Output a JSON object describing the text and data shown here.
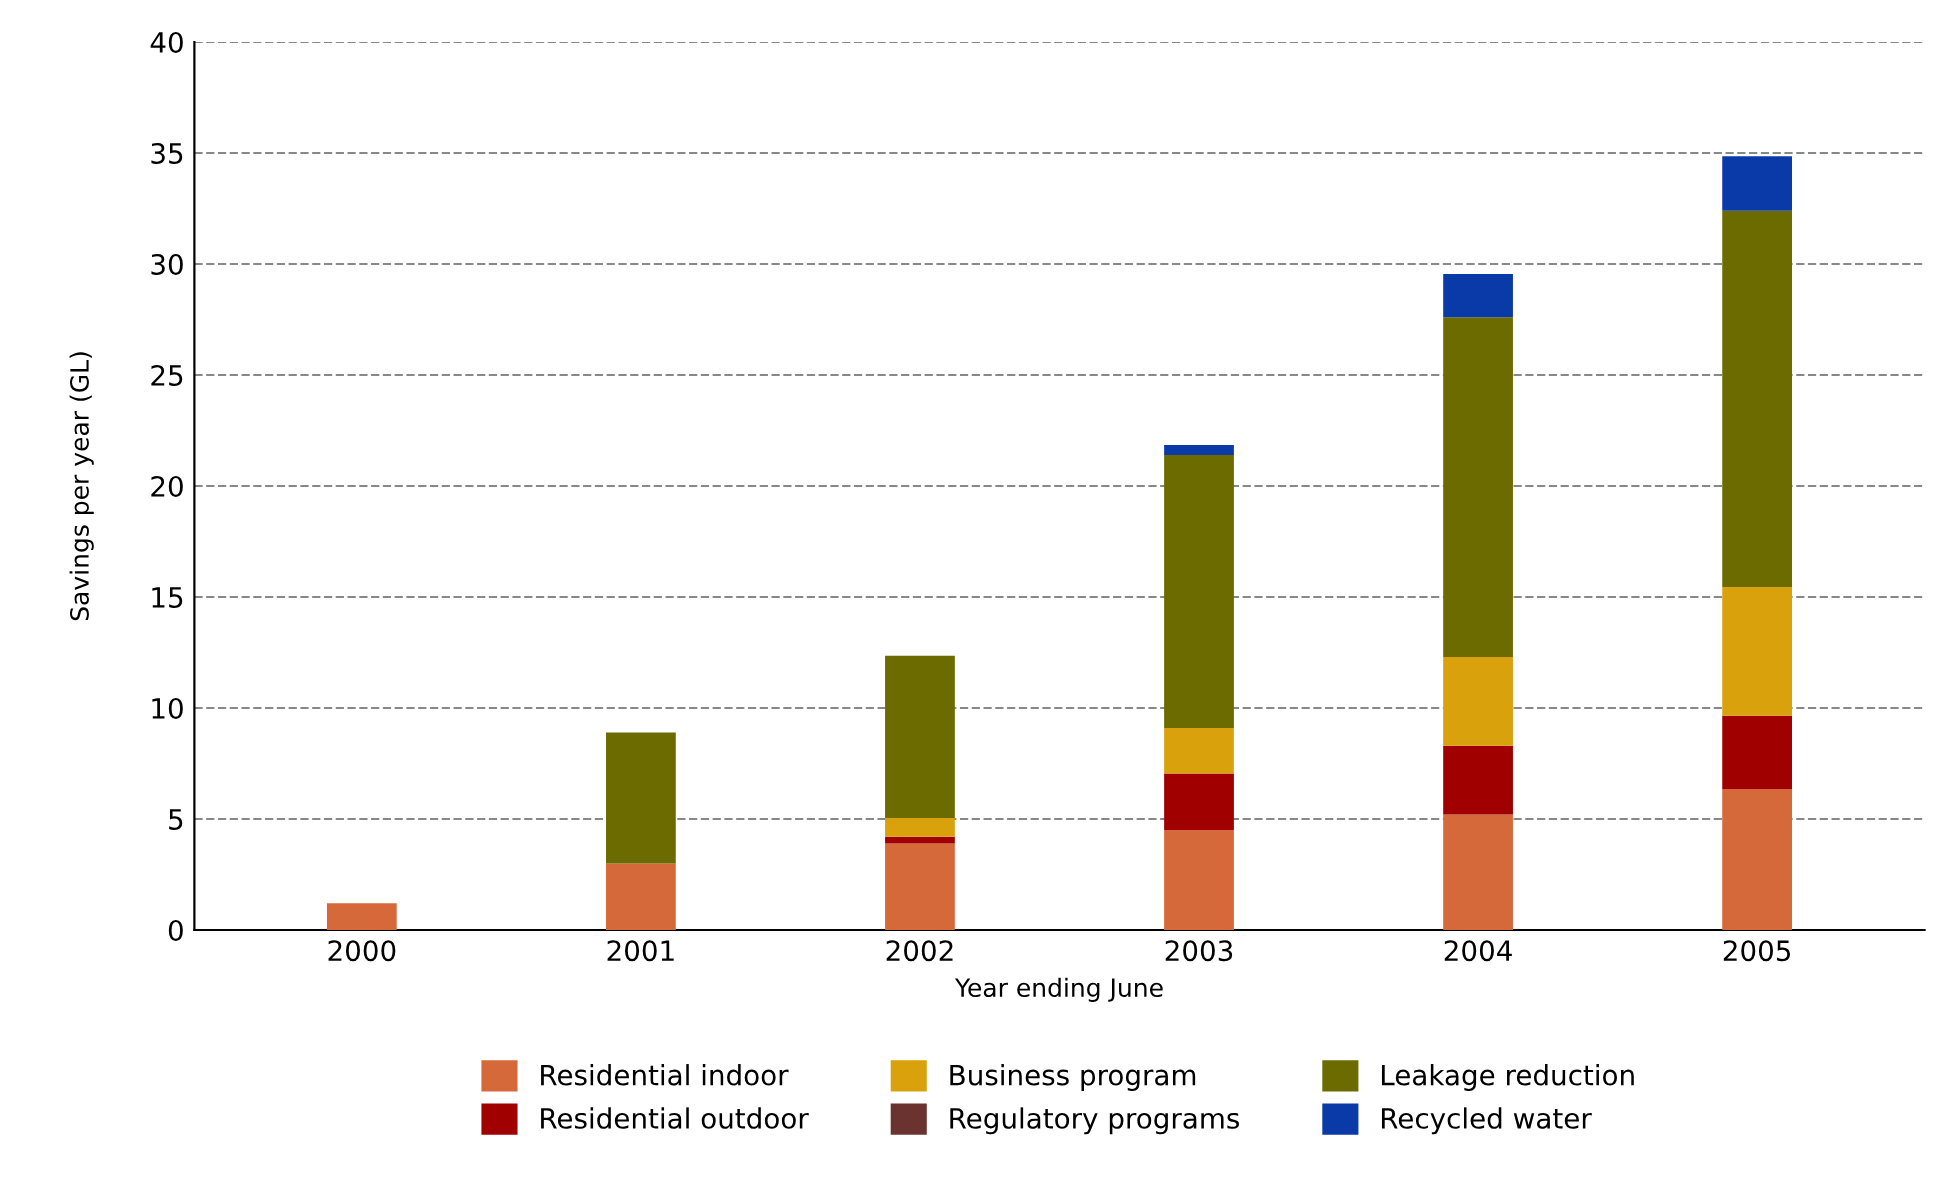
{
  "chart_data": {
    "type": "bar",
    "stacked": true,
    "xlabel": "Year ending June",
    "ylabel": "Savings per year (GL)",
    "categories": [
      "2000",
      "2001",
      "2002",
      "2003",
      "2004",
      "2005"
    ],
    "series": [
      {
        "name": "Residential indoor",
        "color": "#d5693a",
        "values": [
          1.2,
          3.0,
          3.9,
          4.5,
          5.2,
          6.35
        ]
      },
      {
        "name": "Residential outdoor",
        "color": "#a00000",
        "values": [
          0,
          0,
          0.3,
          2.55,
          3.1,
          3.3
        ]
      },
      {
        "name": "Business program",
        "color": "#d9a10b",
        "values": [
          0,
          0,
          0.85,
          2.05,
          4.0,
          5.8
        ]
      },
      {
        "name": "Regulatory programs",
        "color": "#6b3330",
        "values": [
          0,
          0,
          0,
          0,
          0,
          0
        ]
      },
      {
        "name": "Leakage reduction",
        "color": "#6b6b00",
        "values": [
          0,
          5.9,
          7.3,
          12.3,
          15.3,
          16.95
        ]
      },
      {
        "name": "Recycled water",
        "color": "#0a3aa8",
        "values": [
          0,
          0,
          0,
          0.45,
          1.95,
          2.45
        ]
      }
    ],
    "ylim": [
      0,
      40
    ],
    "yticks": [
      0,
      5,
      10,
      15,
      20,
      25,
      30,
      35,
      40
    ],
    "grid": "y",
    "legend": "bottom"
  }
}
